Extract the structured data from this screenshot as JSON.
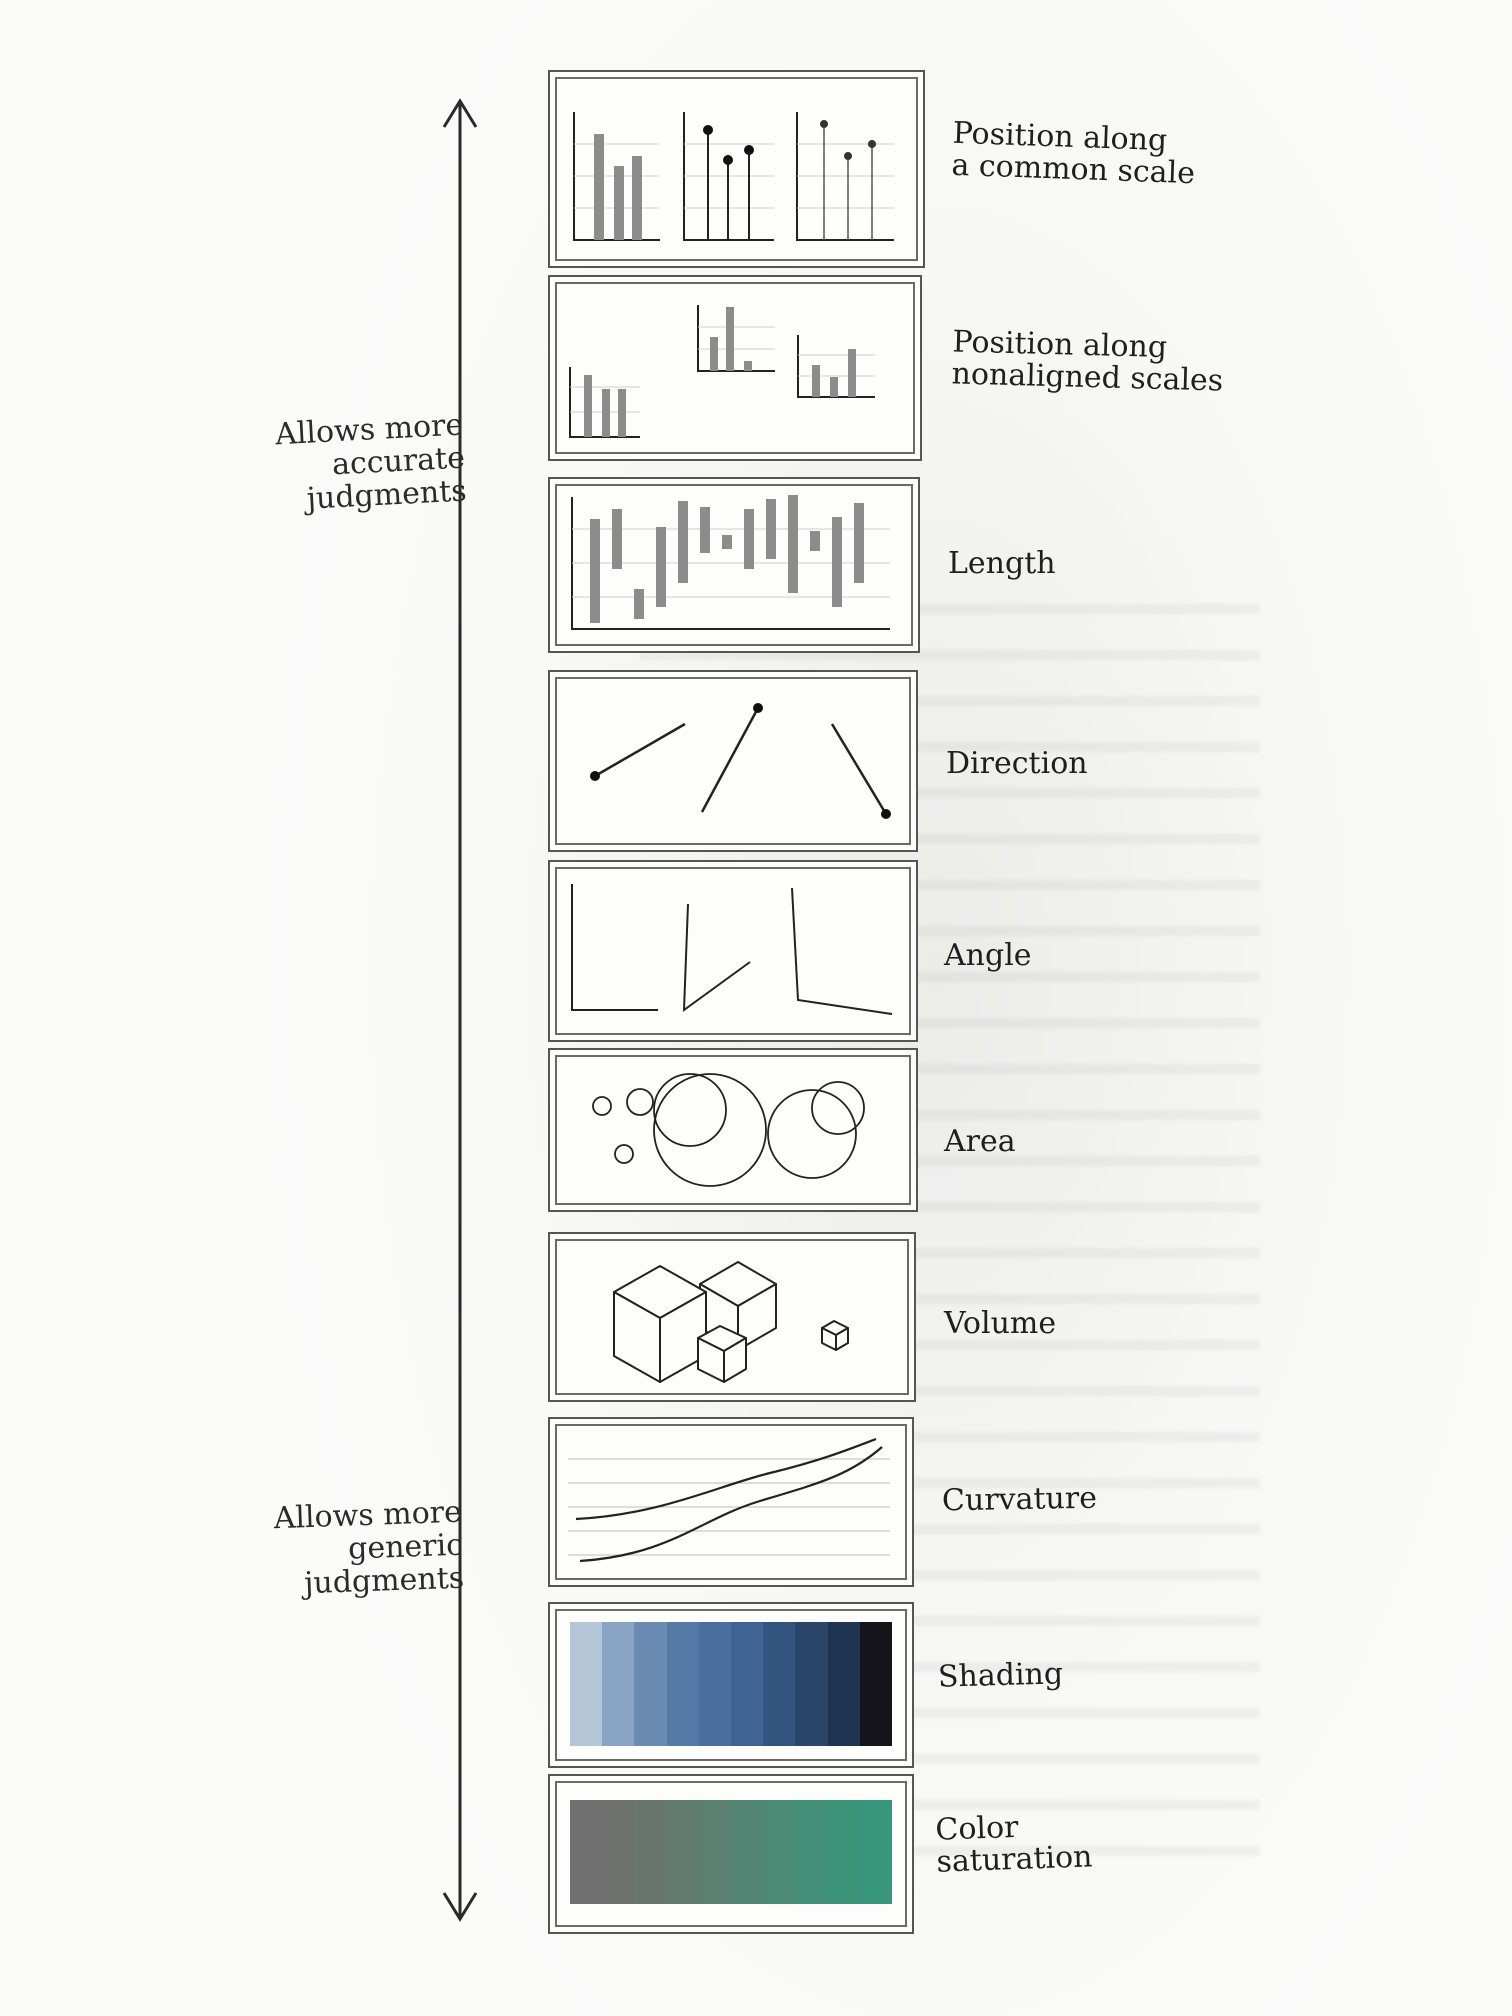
{
  "left_labels": {
    "top": [
      "Allows more",
      "accurate",
      "judgments"
    ],
    "bottom": [
      "Allows more",
      "generic",
      "judgments"
    ]
  },
  "encodings": [
    {
      "id": "position-common",
      "lines": [
        "Position along",
        "a common scale"
      ]
    },
    {
      "id": "position-nonaligned",
      "lines": [
        "Position along",
        "nonaligned scales"
      ]
    },
    {
      "id": "length",
      "lines": [
        "Length"
      ]
    },
    {
      "id": "direction",
      "lines": [
        "Direction"
      ]
    },
    {
      "id": "angle",
      "lines": [
        "Angle"
      ]
    },
    {
      "id": "area",
      "lines": [
        "Area"
      ]
    },
    {
      "id": "volume",
      "lines": [
        "Volume"
      ]
    },
    {
      "id": "curvature",
      "lines": [
        "Curvature"
      ]
    },
    {
      "id": "shading",
      "lines": [
        "Shading"
      ]
    },
    {
      "id": "color-saturation",
      "lines": [
        "Color",
        "saturation"
      ]
    }
  ],
  "shading_colors": [
    "#b5c6d9",
    "#8aa4c3",
    "#6b8bb3",
    "#5579a6",
    "#4a6e9d",
    "#3f6392",
    "#33547f",
    "#2a4568",
    "#1f3450",
    "#14141a"
  ],
  "saturation_colors": [
    "#707070",
    "#6d726f",
    "#68766f",
    "#627b71",
    "#5b8072",
    "#538574",
    "#4b8a75",
    "#438f77",
    "#3c9478",
    "#38977a"
  ],
  "colors": {
    "ink": "#1f1f1f",
    "bar": "#8c8c8c",
    "panel_border": "#555555"
  }
}
